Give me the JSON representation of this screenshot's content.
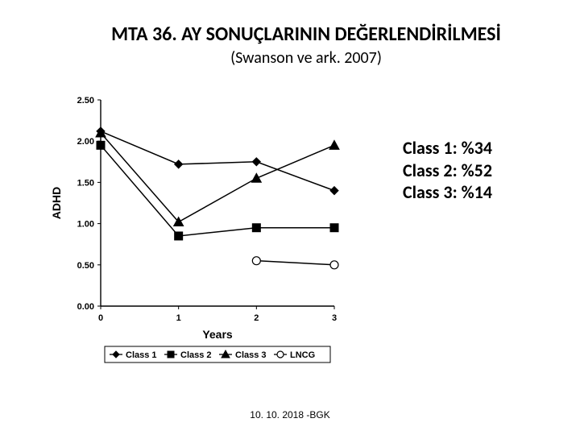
{
  "title": "MTA 36. AY SONUÇLARININ DEĞERLENDİRİLMESİ",
  "subtitle": "(Swanson ve ark. 2007)",
  "footer": "10. 10. 2018 -BGK",
  "side": {
    "line1": "Class 1: %34",
    "line2": "Class 2: %52",
    "line3": "Class 3: %14"
  },
  "chart": {
    "type": "line",
    "background_color": "#ffffff",
    "axis_color": "#000000",
    "line_color": "#000000",
    "line_width": 1.5,
    "font_family": "Arial",
    "xlabel": "Years",
    "ylabel": "ADHD",
    "label_fontsize": 14,
    "label_fontweight": "bold",
    "tick_fontsize": 11,
    "tick_fontweight": "bold",
    "xticks": [
      0,
      1,
      2,
      3
    ],
    "yticks": [
      0.0,
      0.5,
      1.0,
      1.5,
      2.0,
      2.5
    ],
    "ytick_labels": [
      "0.00",
      "0.50",
      "1.00",
      "1.50",
      "2.00",
      "2.50"
    ],
    "ylim": [
      0.0,
      2.5
    ],
    "xlim": [
      0,
      3
    ],
    "marker_size": 6,
    "series": [
      {
        "name": "Class 1",
        "marker": "diamond",
        "fill": "#000000",
        "legend": "Class 1",
        "points": [
          [
            0,
            2.12
          ],
          [
            1,
            1.72
          ],
          [
            2,
            1.75
          ],
          [
            3,
            1.4
          ]
        ]
      },
      {
        "name": "Class 2",
        "marker": "square",
        "fill": "#000000",
        "legend": "Class 2",
        "points": [
          [
            0,
            1.95
          ],
          [
            1,
            0.85
          ],
          [
            2,
            0.95
          ],
          [
            3,
            0.95
          ]
        ]
      },
      {
        "name": "Class 3",
        "marker": "triangle",
        "fill": "#000000",
        "legend": "Class 3",
        "points": [
          [
            0,
            2.1
          ],
          [
            1,
            1.02
          ],
          [
            2,
            1.55
          ],
          [
            3,
            1.95
          ]
        ]
      },
      {
        "name": "LNCG",
        "marker": "circle",
        "fill": "#ffffff",
        "legend": "LNCG",
        "points": [
          [
            2,
            0.55
          ],
          [
            3,
            0.5
          ]
        ]
      }
    ],
    "legend": {
      "border": "#000000",
      "background": "#ffffff",
      "fontsize": 11,
      "fontweight": "bold"
    }
  }
}
